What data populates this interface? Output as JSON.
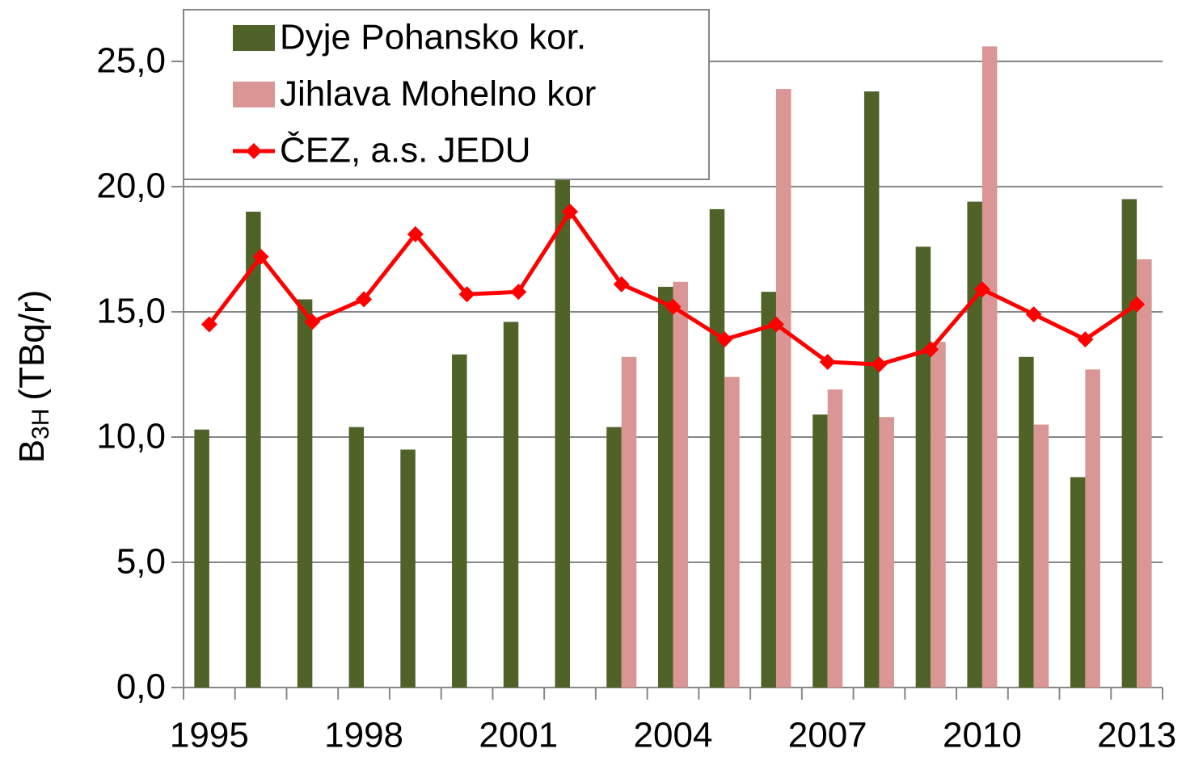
{
  "chart_data": {
    "type": "bar_line",
    "y_label": [
      "B",
      "3H",
      "(TBq/r)"
    ],
    "categories": [
      "1995",
      null,
      null,
      "1998",
      null,
      null,
      "2001",
      null,
      null,
      "2004",
      null,
      null,
      "2007",
      null,
      null,
      "2010",
      null,
      null,
      "2013"
    ],
    "series": [
      {
        "name": "Dyje Pohansko kor.",
        "type": "bar",
        "color": "#4f6228",
        "values": [
          10.3,
          19.0,
          15.5,
          10.4,
          9.5,
          13.3,
          14.6,
          20.3,
          10.4,
          16.0,
          19.1,
          15.8,
          10.9,
          23.8,
          17.6,
          19.4,
          13.2,
          8.4,
          19.5
        ]
      },
      {
        "name": "Jihlava Mohelno kor",
        "type": "bar",
        "color": "#d99694",
        "values": [
          null,
          null,
          null,
          null,
          null,
          null,
          null,
          null,
          13.2,
          16.2,
          12.4,
          23.9,
          11.9,
          10.8,
          13.8,
          25.6,
          10.5,
          12.7,
          17.1
        ]
      },
      {
        "name": "ČEZ, a.s. JEDU",
        "type": "line",
        "color": "#ff0000",
        "values": [
          14.5,
          17.2,
          14.6,
          15.5,
          18.1,
          15.7,
          15.8,
          19.0,
          16.1,
          15.2,
          13.9,
          14.5,
          13.0,
          12.9,
          13.5,
          15.9,
          14.9,
          13.9,
          15.3
        ]
      }
    ],
    "ylim": [
      0,
      26
    ],
    "yticks": [
      {
        "value": 0,
        "label": "0,0"
      },
      {
        "value": 5,
        "label": "5,0"
      },
      {
        "value": 10,
        "label": "10,0"
      },
      {
        "value": 15,
        "label": "15,0"
      },
      {
        "value": 20,
        "label": "20,0"
      },
      {
        "value": 25,
        "label": "25,0"
      }
    ],
    "grid": true,
    "legend": "top-left"
  }
}
